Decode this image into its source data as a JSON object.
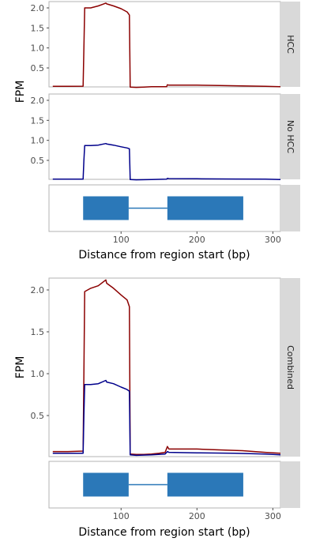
{
  "colors": {
    "hcc": "#8b0000",
    "no_hcc": "#00008b",
    "gene": "#2b78b8",
    "strip": "#d9d9d9",
    "frame": "#b3b3b3"
  },
  "strips": {
    "hcc": "HCC",
    "no_hcc": "No HCC",
    "combined": "Combined"
  },
  "chart_data": [
    {
      "type": "line",
      "facet": "HCC",
      "xlim": [
        5,
        310
      ],
      "ylim": [
        0,
        2.15
      ],
      "ylabel": "FPM",
      "yticks": [
        0.5,
        1.0,
        1.5,
        2.0
      ],
      "yticklabels": [
        "0.5",
        "1.0",
        "1.5",
        "2.0"
      ],
      "series": [
        {
          "x": [
            10,
            30,
            50,
            51,
            52,
            60,
            70,
            80,
            81,
            90,
            100,
            108,
            111,
            112,
            120,
            130,
            140,
            150,
            160,
            161,
            163,
            180,
            200,
            230,
            260,
            290,
            310
          ],
          "y": [
            0.04,
            0.04,
            0.045,
            1.0,
            2.0,
            2.0,
            2.05,
            2.12,
            2.1,
            2.05,
            1.98,
            1.9,
            1.82,
            0.02,
            0.015,
            0.02,
            0.03,
            0.03,
            0.03,
            0.08,
            0.07,
            0.07,
            0.07,
            0.06,
            0.05,
            0.04,
            0.03
          ]
        }
      ]
    },
    {
      "type": "line",
      "facet": "No HCC",
      "xlim": [
        5,
        310
      ],
      "ylim": [
        0,
        2.15
      ],
      "ylabel": "",
      "yticks": [
        0.5,
        1.0,
        1.5,
        2.0
      ],
      "yticklabels": [
        "0.5",
        "1.0",
        "1.5",
        "2.0"
      ],
      "series": [
        {
          "x": [
            10,
            30,
            50,
            51,
            52,
            60,
            70,
            80,
            81,
            90,
            100,
            108,
            111,
            112,
            120,
            140,
            160,
            161,
            163,
            200,
            250,
            290,
            310
          ],
          "y": [
            0.03,
            0.03,
            0.03,
            0.5,
            0.87,
            0.87,
            0.88,
            0.92,
            0.91,
            0.88,
            0.84,
            0.81,
            0.79,
            0.02,
            0.015,
            0.02,
            0.03,
            0.05,
            0.045,
            0.04,
            0.035,
            0.03,
            0.02
          ]
        }
      ]
    },
    {
      "type": "gene",
      "facet": "",
      "xlim": [
        5,
        310
      ],
      "xlabel": "Distance from region start (bp)",
      "xticks": [
        100,
        200,
        300
      ],
      "xticklabels": [
        "100",
        "200",
        "300"
      ],
      "exons": [
        [
          50,
          110
        ],
        [
          161,
          261
        ]
      ],
      "intron": [
        110,
        161
      ]
    },
    {
      "type": "line",
      "facet": "Combined",
      "xlim": [
        5,
        310
      ],
      "ylim": [
        0,
        2.15
      ],
      "ylabel": "FPM",
      "yticks": [
        0.5,
        1.0,
        1.5,
        2.0
      ],
      "yticklabels": [
        "0.5",
        "1.0",
        "1.5",
        "2.0"
      ],
      "series": [
        {
          "x": [
            10,
            30,
            50,
            51,
            52,
            60,
            70,
            80,
            81,
            90,
            100,
            108,
            111,
            112,
            120,
            130,
            140,
            150,
            158,
            161,
            163,
            180,
            200,
            230,
            260,
            290,
            310
          ],
          "y": [
            0.07,
            0.07,
            0.075,
            1.0,
            1.98,
            2.02,
            2.05,
            2.12,
            2.08,
            2.02,
            1.94,
            1.88,
            1.8,
            0.04,
            0.035,
            0.035,
            0.04,
            0.05,
            0.06,
            0.13,
            0.1,
            0.1,
            0.1,
            0.09,
            0.08,
            0.06,
            0.05
          ]
        },
        {
          "x": [
            10,
            30,
            50,
            51,
            52,
            60,
            70,
            80,
            81,
            90,
            100,
            108,
            111,
            112,
            120,
            140,
            158,
            161,
            163,
            200,
            250,
            290,
            310
          ],
          "y": [
            0.05,
            0.05,
            0.05,
            0.5,
            0.87,
            0.87,
            0.88,
            0.92,
            0.9,
            0.88,
            0.84,
            0.81,
            0.79,
            0.03,
            0.025,
            0.03,
            0.04,
            0.07,
            0.06,
            0.055,
            0.05,
            0.04,
            0.03
          ]
        }
      ]
    },
    {
      "type": "gene",
      "facet": "",
      "xlim": [
        5,
        310
      ],
      "xlabel": "Distance from region start (bp)",
      "xticks": [
        100,
        200,
        300
      ],
      "xticklabels": [
        "100",
        "200",
        "300"
      ],
      "exons": [
        [
          50,
          110
        ],
        [
          161,
          261
        ]
      ],
      "intron": [
        110,
        161
      ]
    }
  ]
}
